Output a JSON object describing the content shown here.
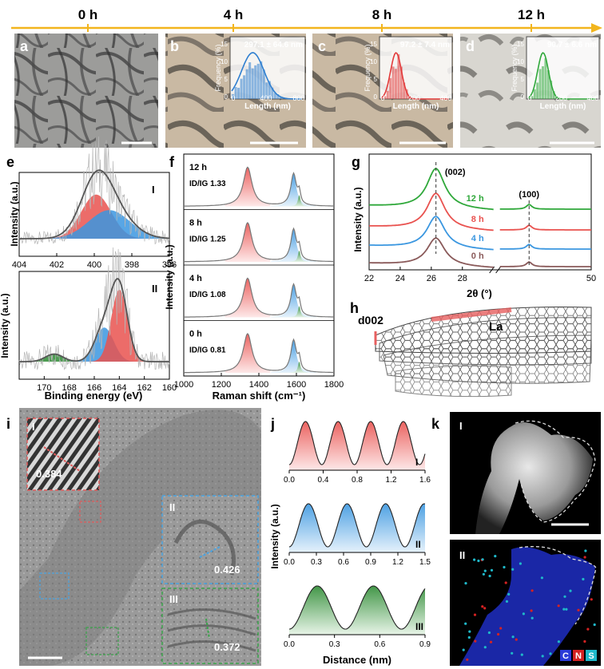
{
  "timeline": {
    "labels": [
      "0 h",
      "4 h",
      "8 h",
      "12 h"
    ],
    "color": "#f2b51d"
  },
  "panel_letters": {
    "a": "a",
    "b": "b",
    "c": "c",
    "d": "d",
    "e": "e",
    "f": "f",
    "g": "g",
    "h": "h",
    "i": "i",
    "j": "j",
    "k": "k"
  },
  "tem_insets": [
    {
      "panel": "b",
      "stat": "297.1 ± 64.6 nm",
      "xticks": [
        "0",
        "400",
        "800"
      ],
      "yticks": [
        "0",
        "5",
        "10",
        "15"
      ],
      "color": "#2f7fd0"
    },
    {
      "panel": "c",
      "stat": "97.2 ± 7.4 nm",
      "xticks": [
        "0",
        "200",
        "400"
      ],
      "yticks": [
        "0",
        "5",
        "10",
        "15"
      ],
      "color": "#e23b3b"
    },
    {
      "panel": "d",
      "stat": "90.7 ± 6.6 nm",
      "xticks": [
        "0",
        "200",
        "400"
      ],
      "yticks": [
        "0",
        "5",
        "10",
        "15"
      ],
      "color": "#2fa83a"
    }
  ],
  "inset_axes": {
    "xlabel": "Length (nm)",
    "ylabel": "Frequency (%)"
  },
  "chart_data": [
    {
      "panel": "e-I",
      "type": "line",
      "xlabel": "",
      "ylabel": "Intensity (a.u.)",
      "xlim": [
        404,
        396
      ],
      "xticks": [
        404,
        402,
        400,
        398,
        396
      ],
      "label": "I",
      "series": [
        {
          "peak_center": 399.9,
          "color": "#e9524f"
        },
        {
          "peak_center": 399.2,
          "color": "#3b97e0"
        }
      ]
    },
    {
      "panel": "e-II",
      "type": "line",
      "xlabel": "Binding energy (eV)",
      "ylabel": "Intensity (a.u.)",
      "xlim": [
        172,
        160
      ],
      "xticks": [
        170,
        168,
        166,
        164,
        162,
        160
      ],
      "label": "II",
      "series": [
        {
          "peak_center": 169.2,
          "color": "#2e8b34"
        },
        {
          "peak_center": 165.2,
          "color": "#3b97e0"
        },
        {
          "peak_center": 164.0,
          "color": "#e9524f"
        }
      ]
    },
    {
      "panel": "f",
      "type": "line",
      "xlabel": "Raman shift (cm⁻¹)",
      "ylabel": "Intensity (a.u.)",
      "xlim": [
        1000,
        1800
      ],
      "xticks": [
        1000,
        1200,
        1400,
        1600,
        1800
      ],
      "samples": [
        {
          "time": "12 h",
          "ratio": "1.33"
        },
        {
          "time": "8 h",
          "ratio": "1.25"
        },
        {
          "time": "4 h",
          "ratio": "1.08"
        },
        {
          "time": "0 h",
          "ratio": "0.81"
        }
      ],
      "ratio_label": "ID/IG",
      "peaks": {
        "D": 1340,
        "G": 1585,
        "D2": 1615
      }
    },
    {
      "panel": "g",
      "type": "line",
      "xlabel": "2θ (°)",
      "ylabel": "Intensity (a.u.)",
      "xticks": [
        22,
        24,
        26,
        28,
        50
      ],
      "series": [
        {
          "name": "12 h",
          "color": "#2fa83a"
        },
        {
          "name": "8 h",
          "color": "#e9524f"
        },
        {
          "name": "4 h",
          "color": "#3b97e0"
        },
        {
          "name": "0 h",
          "color": "#8a5a5a"
        }
      ],
      "annotations": [
        "(002)",
        "(100)"
      ],
      "peak_002": 26.3,
      "peak_100": 43.2
    },
    {
      "panel": "j",
      "type": "line",
      "xlabel": "Distance (nm)",
      "ylabel": "Intensity (a.u.)",
      "profiles": [
        {
          "label": "I",
          "xticks": [
            "0.0",
            "0.4",
            "0.8",
            "1.2",
            "1.6"
          ],
          "xmax": 1.6,
          "period": 0.384,
          "color": "#e9524f"
        },
        {
          "label": "II",
          "xticks": [
            "0.0",
            "0.3",
            "0.6",
            "0.9",
            "1.2",
            "1.5"
          ],
          "xmax": 1.5,
          "period": 0.426,
          "color": "#3b97e0"
        },
        {
          "label": "III",
          "xticks": [
            "0.0",
            "0.3",
            "0.6",
            "0.9"
          ],
          "xmax": 0.9,
          "period": 0.372,
          "color": "#2e8b34"
        }
      ]
    }
  ],
  "structure": {
    "d002": "d002",
    "La": "La"
  },
  "hrtem": {
    "insets": [
      {
        "label": "I",
        "value": "0.384",
        "color": "#e05a5a"
      },
      {
        "label": "II",
        "value": "0.426",
        "color": "#4aa3e0"
      },
      {
        "label": "III",
        "value": "0.372",
        "color": "#3aa34a"
      }
    ]
  },
  "eds": {
    "labels": [
      "I",
      "II"
    ],
    "legend": [
      "C",
      "N",
      "S"
    ],
    "legend_colors": [
      "#2b3bd8",
      "#d42222",
      "#1fb8c9"
    ]
  }
}
